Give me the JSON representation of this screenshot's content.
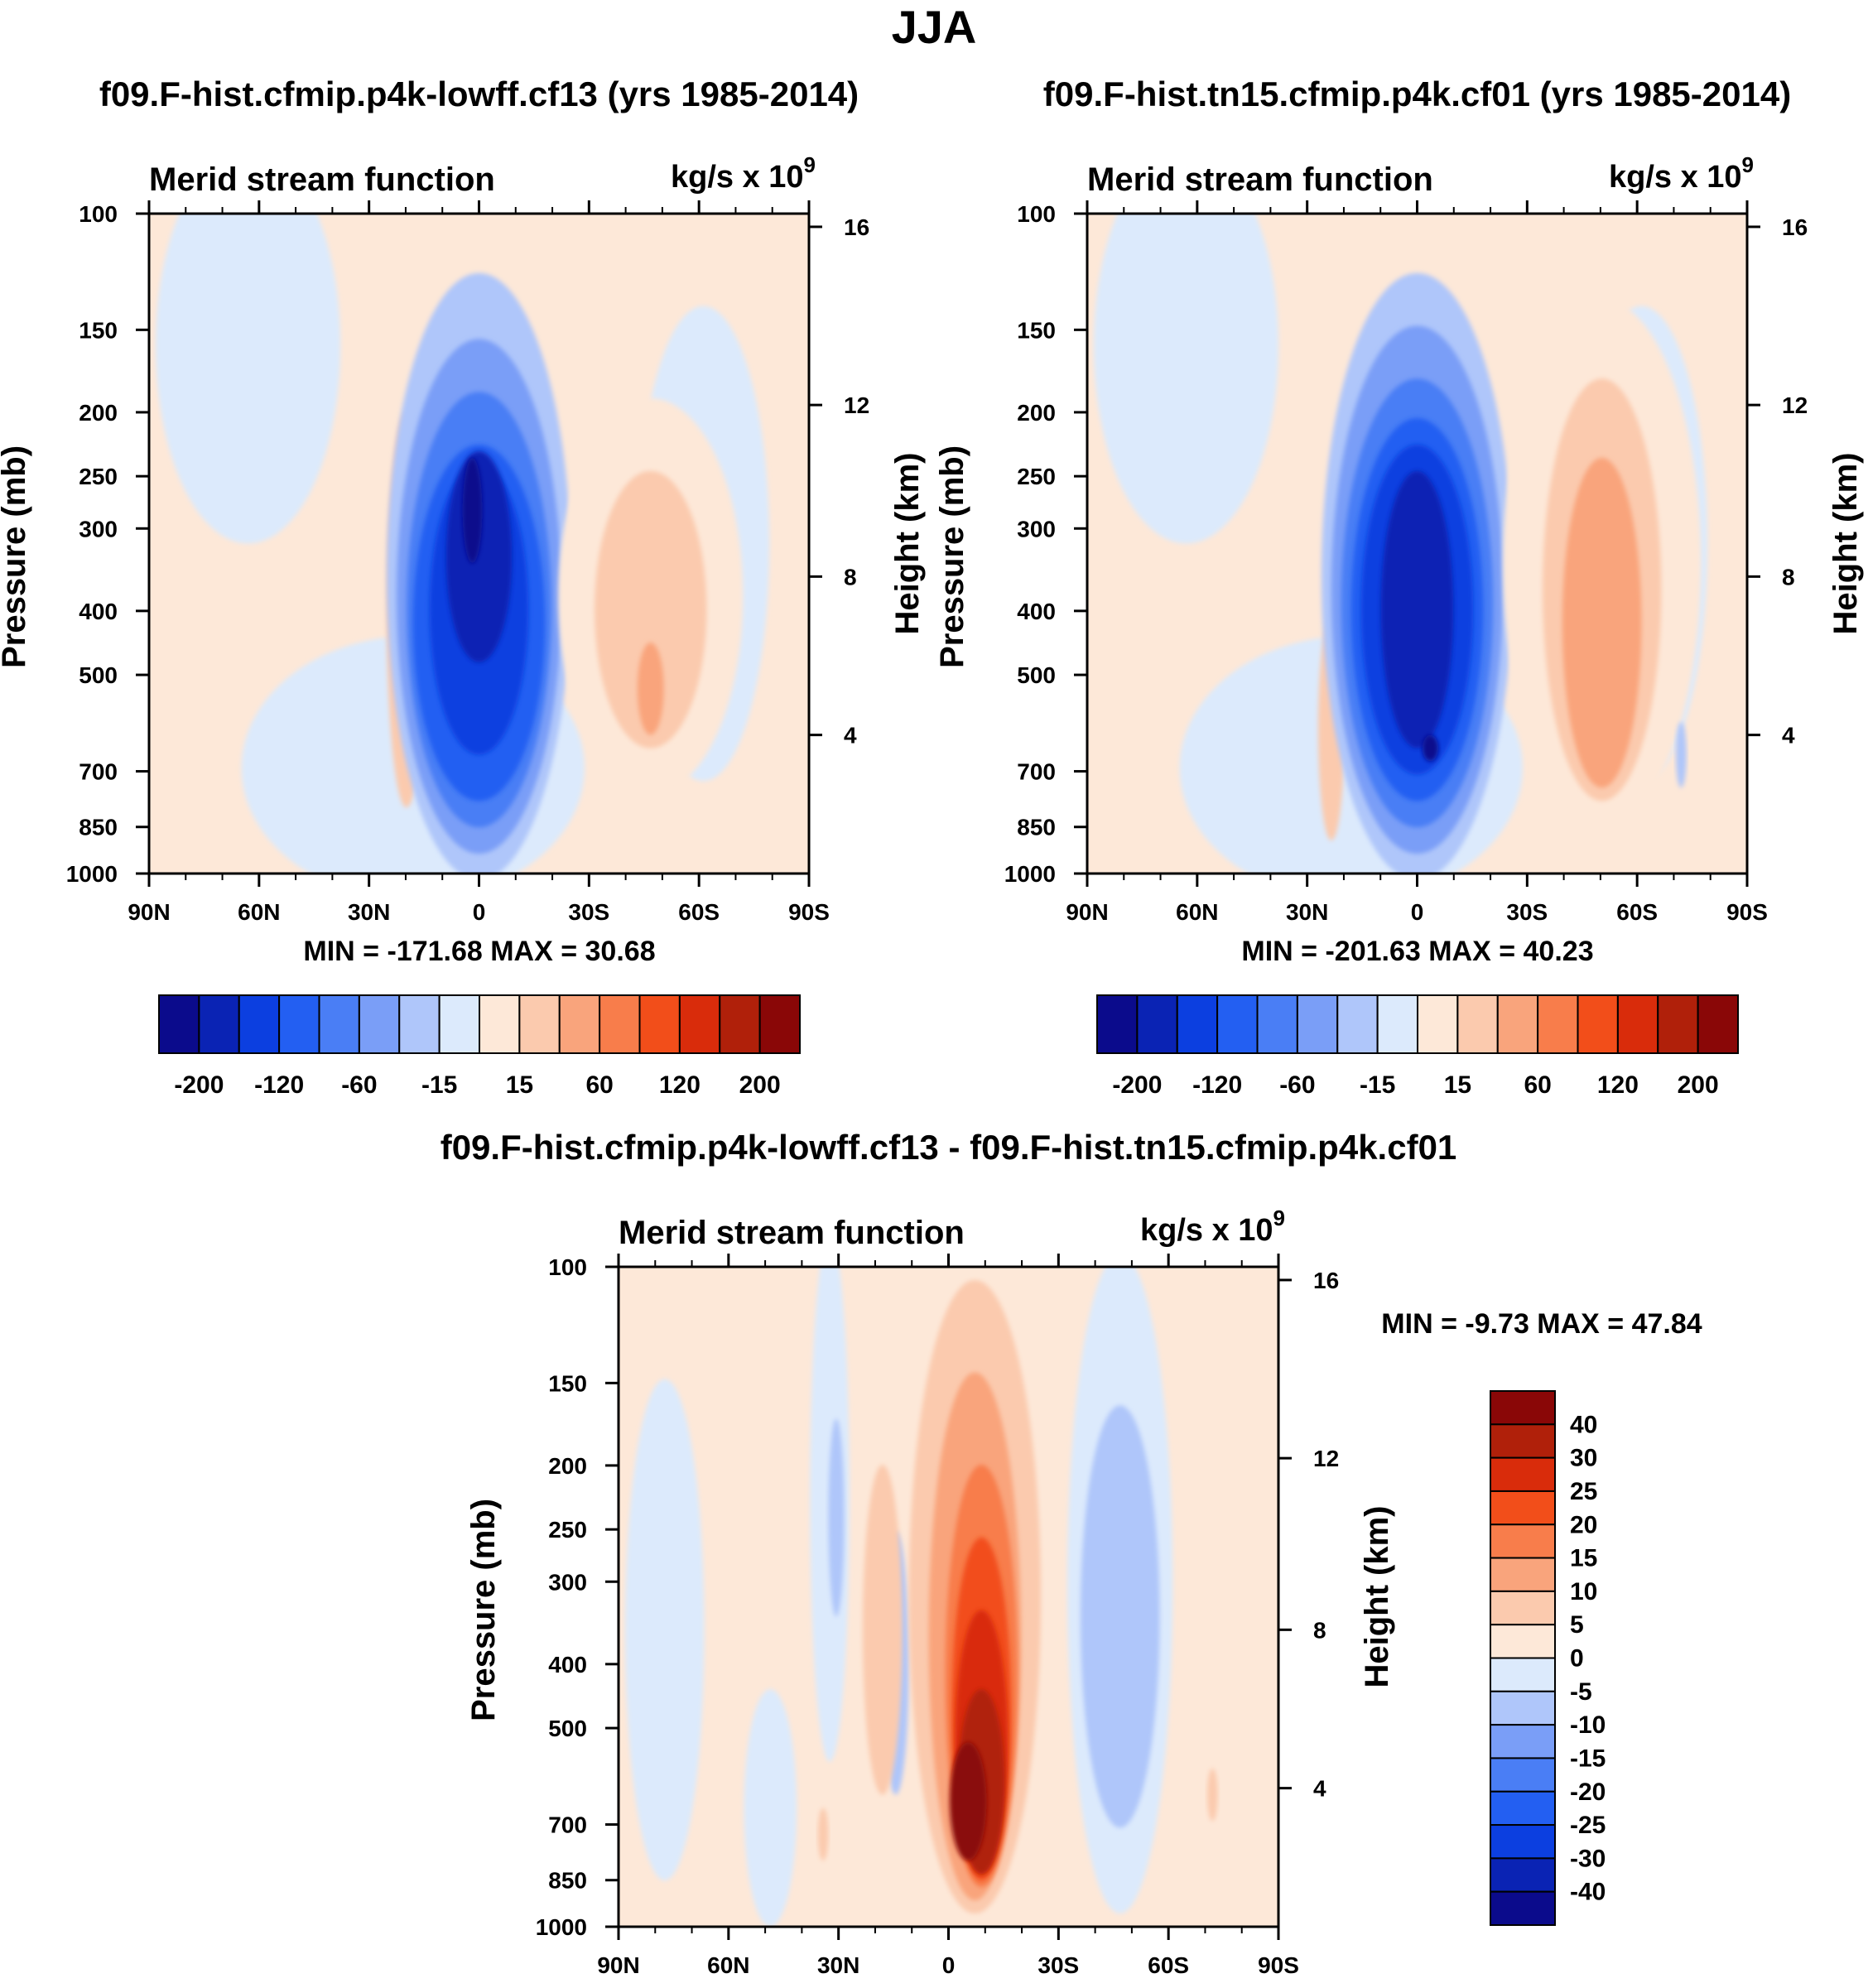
{
  "figure_title": "JJA",
  "chart_data": [
    {
      "type": "contour",
      "title": "f09.F-hist.cfmip.p4k-lowff.cf13 (yrs 1985-2014)",
      "left_string": "Merid stream function",
      "units": "kg/s x 10",
      "units_exp": "9",
      "ylabel": "Pressure (mb)",
      "ylabel_right": "Height (km)",
      "x_ticks": [
        "90N",
        "60N",
        "30N",
        "0",
        "30S",
        "60S",
        "90S"
      ],
      "y_ticks": [
        "100",
        "150",
        "200",
        "250",
        "300",
        "400",
        "500",
        "700",
        "850",
        "1000"
      ],
      "y_ticks_right": [
        "16",
        "12",
        "8",
        "4"
      ],
      "stats_text": "MIN = -171.68  MAX =  30.68",
      "min": -171.68,
      "max": 30.68,
      "colorbar_labels": [
        "-200",
        "-120",
        "-60",
        "-15",
        "15",
        "60",
        "120",
        "200"
      ],
      "colorbar_colors": [
        "#0b0b8c",
        "#0a23b4",
        "#0c3fe0",
        "#235ff2",
        "#4a7ef5",
        "#7a9ef7",
        "#afc6fa",
        "#dceafc",
        "#fde8d8",
        "#fbcaae",
        "#f9a47c",
        "#f87d4b",
        "#f24e1a",
        "#d92c0b",
        "#b0200a",
        "#8a0707"
      ]
    },
    {
      "type": "contour",
      "title": "f09.F-hist.tn15.cfmip.p4k.cf01 (yrs 1985-2014)",
      "left_string": "Merid stream function",
      "units": "kg/s x 10",
      "units_exp": "9",
      "ylabel": "Pressure (mb)",
      "ylabel_right": "Height (km)",
      "x_ticks": [
        "90N",
        "60N",
        "30N",
        "0",
        "30S",
        "60S",
        "90S"
      ],
      "y_ticks": [
        "100",
        "150",
        "200",
        "250",
        "300",
        "400",
        "500",
        "700",
        "850",
        "1000"
      ],
      "y_ticks_right": [
        "16",
        "12",
        "8",
        "4"
      ],
      "stats_text": "MIN = -201.63  MAX =  40.23",
      "min": -201.63,
      "max": 40.23,
      "colorbar_labels": [
        "-200",
        "-120",
        "-60",
        "-15",
        "15",
        "60",
        "120",
        "200"
      ],
      "colorbar_colors": [
        "#0b0b8c",
        "#0a23b4",
        "#0c3fe0",
        "#235ff2",
        "#4a7ef5",
        "#7a9ef7",
        "#afc6fa",
        "#dceafc",
        "#fde8d8",
        "#fbcaae",
        "#f9a47c",
        "#f87d4b",
        "#f24e1a",
        "#d92c0b",
        "#b0200a",
        "#8a0707"
      ]
    },
    {
      "type": "contour",
      "title": "f09.F-hist.cfmip.p4k-lowff.cf13 - f09.F-hist.tn15.cfmip.p4k.cf01",
      "left_string": "Merid stream function",
      "units": "kg/s x 10",
      "units_exp": "9",
      "ylabel": "Pressure (mb)",
      "ylabel_right": "Height (km)",
      "x_ticks": [
        "90N",
        "60N",
        "30N",
        "0",
        "30S",
        "60S",
        "90S"
      ],
      "y_ticks": [
        "100",
        "150",
        "200",
        "250",
        "300",
        "400",
        "500",
        "700",
        "850",
        "1000"
      ],
      "y_ticks_right": [
        "16",
        "12",
        "8",
        "4"
      ],
      "stats_text": "MIN =  -9.73  MAX =  47.84",
      "min": -9.73,
      "max": 47.84,
      "colorbar_labels": [
        "40",
        "30",
        "25",
        "20",
        "15",
        "10",
        "5",
        "0",
        "-5",
        "-10",
        "-15",
        "-20",
        "-25",
        "-30",
        "-40"
      ],
      "colorbar_colors": [
        "#8a0707",
        "#b0200a",
        "#d92c0b",
        "#f24e1a",
        "#f87d4b",
        "#f9a47c",
        "#fbcaae",
        "#fde8d8",
        "#dceafc",
        "#afc6fa",
        "#7a9ef7",
        "#4a7ef5",
        "#235ff2",
        "#0c3fe0",
        "#0a23b4",
        "#0b0b8c"
      ]
    }
  ]
}
